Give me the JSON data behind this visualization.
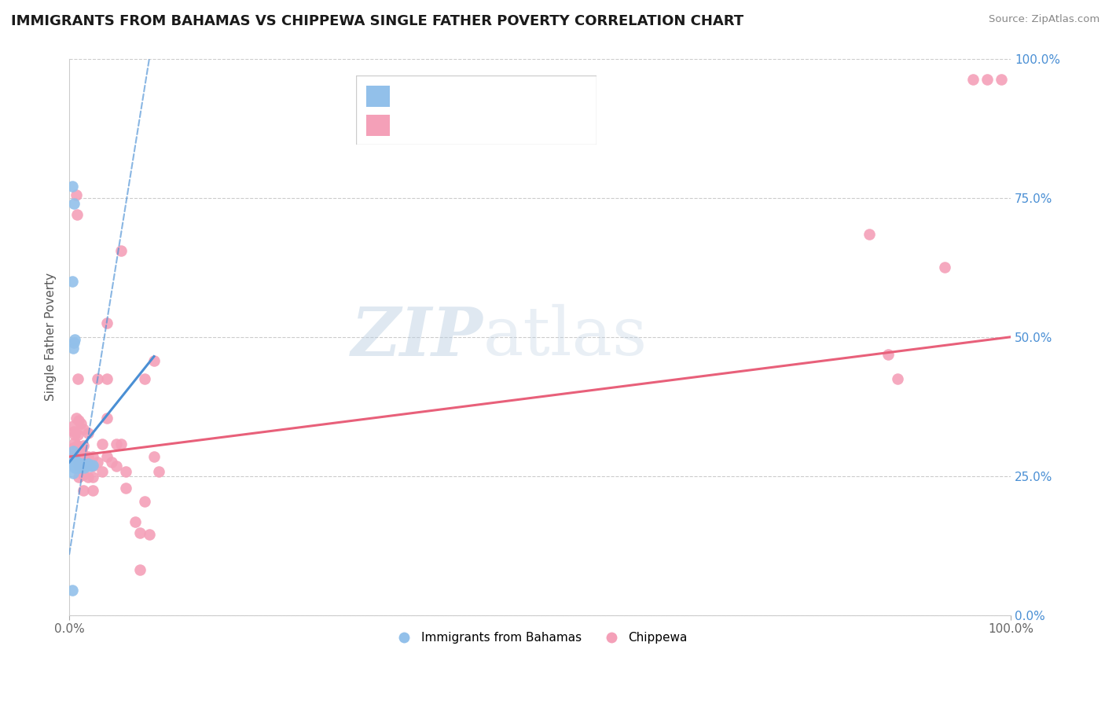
{
  "title": "IMMIGRANTS FROM BAHAMAS VS CHIPPEWA SINGLE FATHER POVERTY CORRELATION CHART",
  "source": "Source: ZipAtlas.com",
  "ylabel": "Single Father Poverty",
  "xlim": [
    0,
    1
  ],
  "ylim": [
    0,
    1
  ],
  "xtick_labels": [
    "0.0%",
    "100.0%"
  ],
  "ytick_labels": [
    "0.0%",
    "25.0%",
    "50.0%",
    "75.0%",
    "100.0%"
  ],
  "ytick_positions": [
    0.0,
    0.25,
    0.5,
    0.75,
    1.0
  ],
  "blue_color": "#92c0ea",
  "pink_color": "#f4a0b8",
  "blue_line_color": "#4a8fd4",
  "pink_line_color": "#e8607a",
  "blue_scatter": [
    [
      0.004,
      0.255
    ],
    [
      0.004,
      0.295
    ],
    [
      0.005,
      0.275
    ],
    [
      0.005,
      0.27
    ],
    [
      0.005,
      0.28
    ],
    [
      0.006,
      0.27
    ],
    [
      0.006,
      0.265
    ],
    [
      0.006,
      0.28
    ],
    [
      0.007,
      0.27
    ],
    [
      0.007,
      0.275
    ],
    [
      0.007,
      0.265
    ],
    [
      0.007,
      0.27
    ],
    [
      0.008,
      0.265
    ],
    [
      0.008,
      0.27
    ],
    [
      0.008,
      0.275
    ],
    [
      0.009,
      0.265
    ],
    [
      0.009,
      0.27
    ],
    [
      0.009,
      0.268
    ],
    [
      0.01,
      0.272
    ],
    [
      0.01,
      0.268
    ],
    [
      0.01,
      0.266
    ],
    [
      0.012,
      0.27
    ],
    [
      0.013,
      0.268
    ],
    [
      0.014,
      0.272
    ],
    [
      0.015,
      0.268
    ],
    [
      0.016,
      0.266
    ],
    [
      0.018,
      0.27
    ],
    [
      0.02,
      0.272
    ],
    [
      0.022,
      0.268
    ],
    [
      0.025,
      0.27
    ],
    [
      0.005,
      0.49
    ],
    [
      0.003,
      0.6
    ],
    [
      0.003,
      0.77
    ],
    [
      0.005,
      0.74
    ],
    [
      0.004,
      0.48
    ],
    [
      0.003,
      0.045
    ],
    [
      0.006,
      0.495
    ]
  ],
  "pink_scatter": [
    [
      0.004,
      0.34
    ],
    [
      0.004,
      0.3
    ],
    [
      0.005,
      0.33
    ],
    [
      0.005,
      0.285
    ],
    [
      0.006,
      0.31
    ],
    [
      0.006,
      0.325
    ],
    [
      0.007,
      0.355
    ],
    [
      0.007,
      0.755
    ],
    [
      0.008,
      0.72
    ],
    [
      0.008,
      0.305
    ],
    [
      0.009,
      0.425
    ],
    [
      0.009,
      0.29
    ],
    [
      0.009,
      0.325
    ],
    [
      0.01,
      0.35
    ],
    [
      0.01,
      0.275
    ],
    [
      0.01,
      0.268
    ],
    [
      0.01,
      0.248
    ],
    [
      0.011,
      0.285
    ],
    [
      0.012,
      0.345
    ],
    [
      0.012,
      0.272
    ],
    [
      0.013,
      0.295
    ],
    [
      0.015,
      0.335
    ],
    [
      0.015,
      0.285
    ],
    [
      0.015,
      0.252
    ],
    [
      0.015,
      0.225
    ],
    [
      0.015,
      0.305
    ],
    [
      0.02,
      0.285
    ],
    [
      0.02,
      0.328
    ],
    [
      0.02,
      0.272
    ],
    [
      0.02,
      0.248
    ],
    [
      0.025,
      0.268
    ],
    [
      0.025,
      0.248
    ],
    [
      0.025,
      0.225
    ],
    [
      0.025,
      0.285
    ],
    [
      0.03,
      0.425
    ],
    [
      0.03,
      0.275
    ],
    [
      0.035,
      0.308
    ],
    [
      0.035,
      0.258
    ],
    [
      0.04,
      0.525
    ],
    [
      0.04,
      0.355
    ],
    [
      0.04,
      0.285
    ],
    [
      0.04,
      0.425
    ],
    [
      0.045,
      0.275
    ],
    [
      0.05,
      0.308
    ],
    [
      0.05,
      0.268
    ],
    [
      0.055,
      0.655
    ],
    [
      0.055,
      0.308
    ],
    [
      0.06,
      0.258
    ],
    [
      0.06,
      0.228
    ],
    [
      0.07,
      0.168
    ],
    [
      0.075,
      0.148
    ],
    [
      0.075,
      0.082
    ],
    [
      0.08,
      0.425
    ],
    [
      0.08,
      0.205
    ],
    [
      0.085,
      0.145
    ],
    [
      0.09,
      0.285
    ],
    [
      0.09,
      0.458
    ],
    [
      0.095,
      0.258
    ],
    [
      0.85,
      0.685
    ],
    [
      0.87,
      0.468
    ],
    [
      0.88,
      0.425
    ],
    [
      0.93,
      0.625
    ],
    [
      0.96,
      0.962
    ],
    [
      0.975,
      0.962
    ],
    [
      0.99,
      0.962
    ]
  ],
  "blue_dashed_line": [
    [
      0.0,
      0.11
    ],
    [
      0.085,
      1.0
    ]
  ],
  "pink_trendline": [
    [
      0.0,
      0.285
    ],
    [
      1.0,
      0.5
    ]
  ],
  "blue_trendline": [
    [
      0.0,
      0.275
    ],
    [
      0.09,
      0.465
    ]
  ]
}
